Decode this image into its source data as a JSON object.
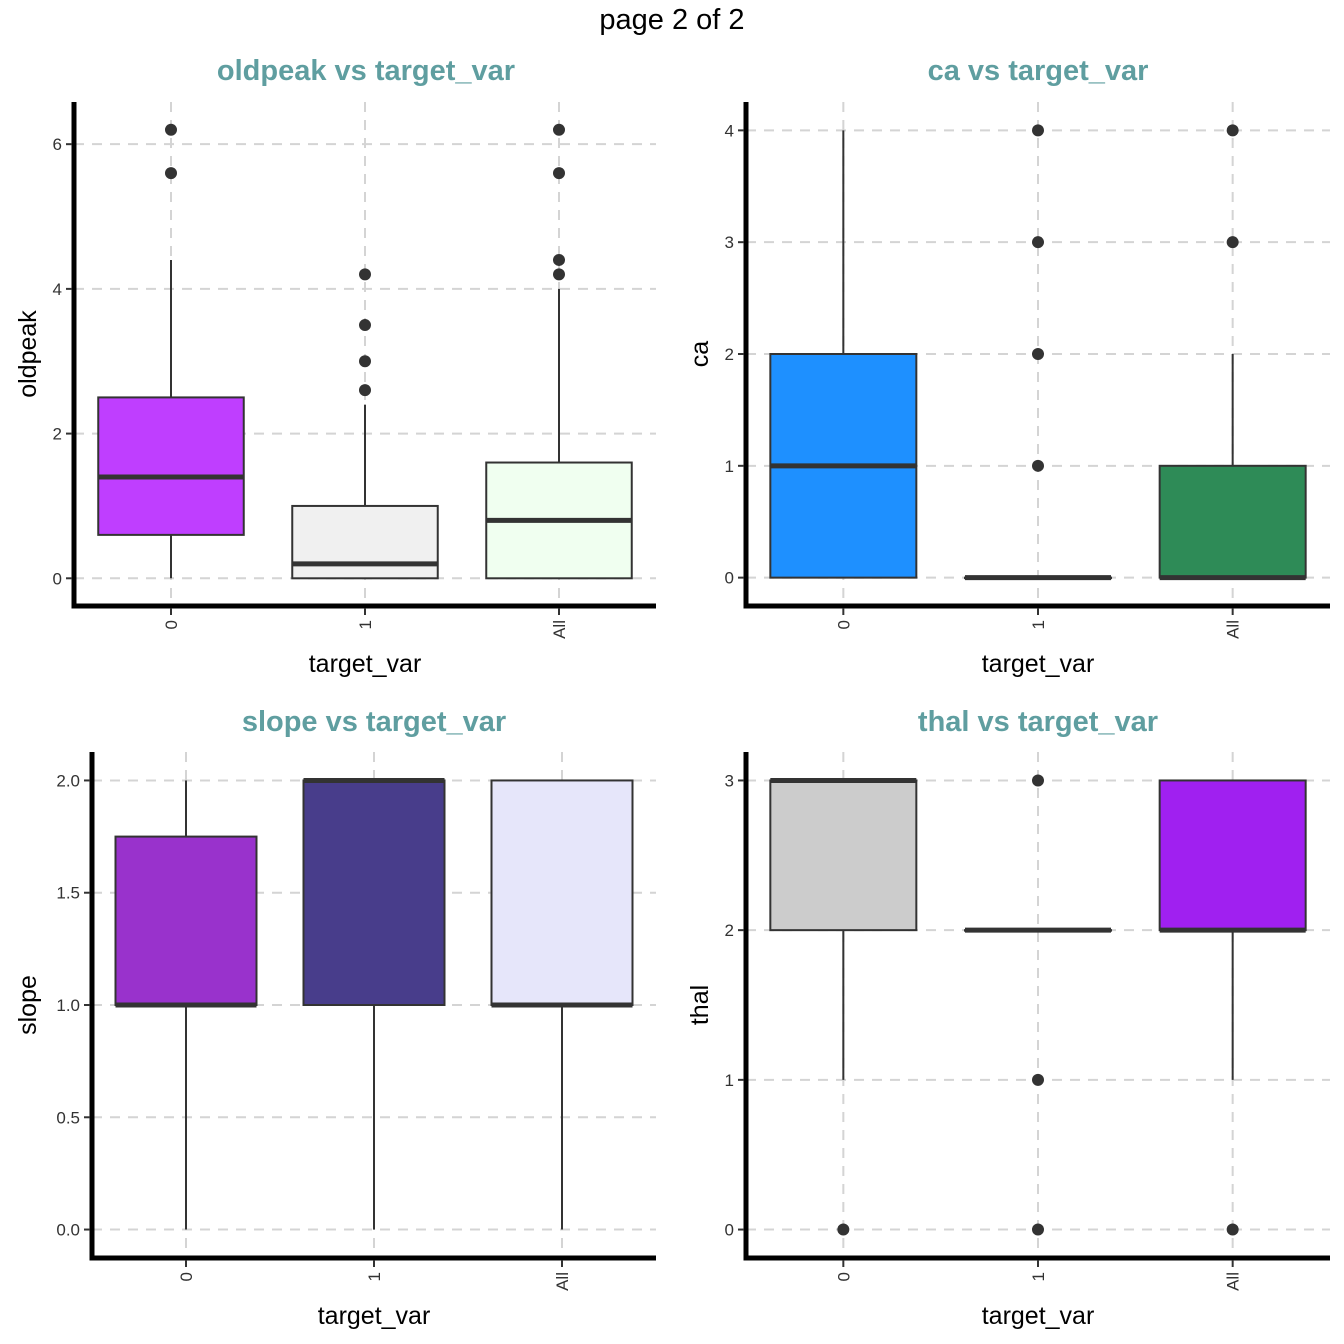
{
  "page_title": "page 2 of 2",
  "colors": {
    "title": "#5F9EA0",
    "outline": "#333333",
    "grid": "#d4d4d4"
  },
  "chart_data": [
    {
      "type": "boxplot",
      "title": "oldpeak vs target_var",
      "xlabel": "target_var",
      "ylabel": "oldpeak",
      "categories": [
        "0",
        "1",
        "All"
      ],
      "yticks": [
        "0",
        "2",
        "4",
        "6"
      ],
      "ylim": [
        -0.3,
        6.5
      ],
      "boxes": [
        {
          "category": "0",
          "fill": "#BF3EFF",
          "min": 0.0,
          "q1": 0.6,
          "median": 1.4,
          "q3": 2.5,
          "max": 4.4,
          "outliers": [
            5.6,
            6.2
          ]
        },
        {
          "category": "1",
          "fill": "#F0F0F0",
          "min": 0.0,
          "q1": 0.0,
          "median": 0.2,
          "q3": 1.0,
          "max": 2.4,
          "outliers": [
            2.6,
            3.0,
            3.5,
            4.2
          ]
        },
        {
          "category": "All",
          "fill": "#F0FFF0",
          "min": 0.0,
          "q1": 0.0,
          "median": 0.8,
          "q3": 1.6,
          "max": 4.0,
          "outliers": [
            4.2,
            4.4,
            5.6,
            6.2
          ]
        }
      ]
    },
    {
      "type": "boxplot",
      "title": "ca vs target_var",
      "xlabel": "target_var",
      "ylabel": "ca",
      "categories": [
        "0",
        "1",
        "All"
      ],
      "yticks": [
        "0",
        "1",
        "2",
        "3",
        "4"
      ],
      "ylim": [
        -0.2,
        4.2
      ],
      "boxes": [
        {
          "category": "0",
          "fill": "#1E90FF",
          "min": 0,
          "q1": 0,
          "median": 1,
          "q3": 2,
          "max": 4,
          "outliers": []
        },
        {
          "category": "1",
          "fill": "#FFFFFF",
          "min": 0,
          "q1": 0,
          "median": 0,
          "q3": 0,
          "max": 0,
          "outliers": [
            1,
            2,
            3,
            4
          ]
        },
        {
          "category": "All",
          "fill": "#2E8B57",
          "min": 0,
          "q1": 0,
          "median": 0,
          "q3": 1,
          "max": 2,
          "outliers": [
            3,
            4
          ]
        }
      ]
    },
    {
      "type": "boxplot",
      "title": "slope vs target_var",
      "xlabel": "target_var",
      "ylabel": "slope",
      "categories": [
        "0",
        "1",
        "All"
      ],
      "yticks": [
        "0.0",
        "0.5",
        "1.0",
        "1.5",
        "2.0"
      ],
      "ylim": [
        -0.1,
        2.1
      ],
      "boxes": [
        {
          "category": "0",
          "fill": "#9932CC",
          "min": 0,
          "q1": 1.0,
          "median": 1.0,
          "q3": 1.75,
          "max": 2.0,
          "outliers": []
        },
        {
          "category": "1",
          "fill": "#483D8B",
          "min": 0,
          "q1": 1.0,
          "median": 2.0,
          "q3": 2.0,
          "max": 2.0,
          "outliers": []
        },
        {
          "category": "All",
          "fill": "#E6E6FA",
          "min": 0,
          "q1": 1.0,
          "median": 1.0,
          "q3": 2.0,
          "max": 2.0,
          "outliers": []
        }
      ]
    },
    {
      "type": "boxplot",
      "title": "thal vs target_var",
      "xlabel": "target_var",
      "ylabel": "thal",
      "categories": [
        "0",
        "1",
        "All"
      ],
      "yticks": [
        "0",
        "1",
        "2",
        "3"
      ],
      "ylim": [
        -0.15,
        3.15
      ],
      "boxes": [
        {
          "category": "0",
          "fill": "#CCCCCC",
          "min": 1,
          "q1": 2,
          "median": 3,
          "q3": 3,
          "max": 3,
          "outliers": [
            0
          ]
        },
        {
          "category": "1",
          "fill": "#FFFFFF",
          "min": 2,
          "q1": 2,
          "median": 2,
          "q3": 2,
          "max": 2,
          "outliers": [
            0,
            1,
            3
          ]
        },
        {
          "category": "All",
          "fill": "#A020F0",
          "min": 1,
          "q1": 2,
          "median": 2,
          "q3": 3,
          "max": 3,
          "outliers": [
            0
          ]
        }
      ]
    }
  ]
}
